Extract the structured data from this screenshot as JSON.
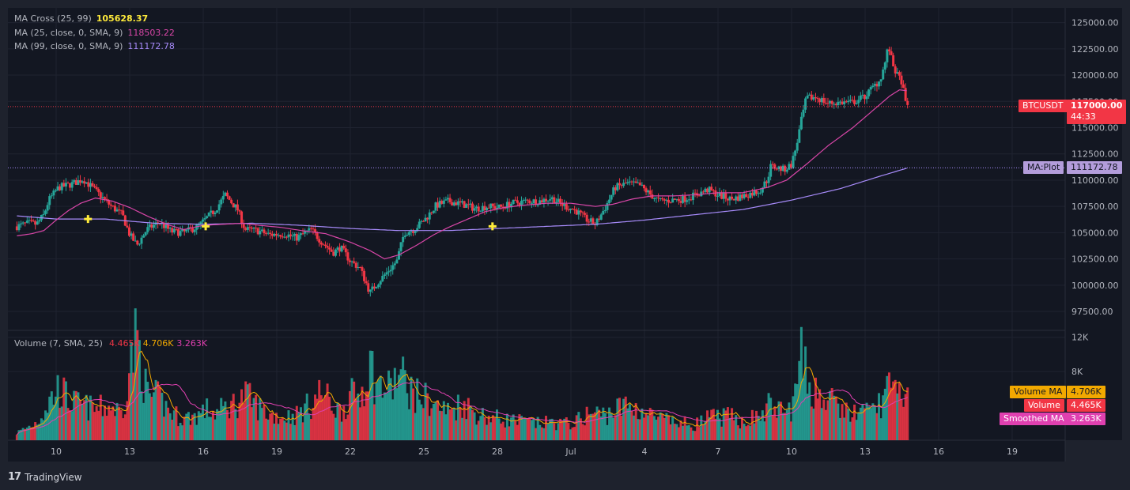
{
  "legend": {
    "ma_cross_label": "MA Cross (25, 99)",
    "ma_cross_value": "105628.37",
    "ma25_label": "MA (25, close, 0, SMA, 9)",
    "ma25_value": "118503.22",
    "ma99_label": "MA (99, close, 0, SMA, 9)",
    "ma99_value": "111172.78",
    "volume_label": "Volume (7, SMA, 25)",
    "volume_v1": "4.465K",
    "volume_v2": "4.706K",
    "volume_v3": "3.263K"
  },
  "tags": {
    "symbol": "BTCUSDT",
    "price": "117000.00",
    "countdown": "44:33",
    "ma_plot_label": "MA:Plot",
    "ma_plot_value": "111172.78",
    "vol_ma_label": "Volume MA",
    "vol_ma_value": "4.706K",
    "volume_label": "Volume",
    "volume_value": "4.465K",
    "smoothed_label": "Smoothed MA",
    "smoothed_value": "3.263K"
  },
  "brand": {
    "name": "TradingView"
  },
  "colors": {
    "background": "#1e222d",
    "plot_bg": "#131722",
    "up": "#26a69a",
    "down": "#f23645",
    "ma25": "#d946a8",
    "ma99": "#a78bfa",
    "cross_marker": "#ffeb3b",
    "vol_ma": "#f2a900",
    "smoothed_ma": "#e040b0"
  },
  "chart_data": {
    "type": "candlestick",
    "symbol": "BTCUSDT",
    "interval": "2h",
    "price_axis": {
      "ticks": [
        "125000.00",
        "122500.00",
        "120000.00",
        "117500.00",
        "115000.00",
        "112500.00",
        "110000.00",
        "107500.00",
        "105000.00",
        "102500.00",
        "100000.00",
        "97500.00"
      ],
      "range": [
        95700,
        126400
      ]
    },
    "volume_axis": {
      "ticks": [
        "12K",
        "8K"
      ],
      "range": [
        0,
        12800
      ]
    },
    "time_axis": {
      "labels": [
        "10",
        "13",
        "16",
        "19",
        "22",
        "25",
        "28",
        "Jul",
        "4",
        "7",
        "10",
        "13",
        "16",
        "19"
      ],
      "range_days": [
        8.35,
        23.5
      ]
    },
    "anchors": [
      {
        "t": 8.4,
        "p": 105600,
        "v": 0.8
      },
      {
        "t": 8.9,
        "p": 105900,
        "v": 1.5
      },
      {
        "t": 9.2,
        "p": 105800,
        "v": 2.0
      },
      {
        "t": 9.5,
        "p": 106700,
        "v": 3.2
      },
      {
        "t": 9.7,
        "p": 108100,
        "v": 4.2
      },
      {
        "t": 10.1,
        "p": 109300,
        "v": 5.8
      },
      {
        "t": 10.6,
        "p": 109600,
        "v": 4.2
      },
      {
        "t": 11.1,
        "p": 110100,
        "v": 3.8
      },
      {
        "t": 11.6,
        "p": 109000,
        "v": 3.4
      },
      {
        "t": 12.2,
        "p": 107600,
        "v": 3.8
      },
      {
        "t": 12.7,
        "p": 106700,
        "v": 3.0
      },
      {
        "t": 13.0,
        "p": 104800,
        "v": 8.0
      },
      {
        "t": 13.3,
        "p": 103800,
        "v": 11.5
      },
      {
        "t": 13.7,
        "p": 105300,
        "v": 5.0
      },
      {
        "t": 14.2,
        "p": 106000,
        "v": 4.6
      },
      {
        "t": 14.7,
        "p": 105100,
        "v": 3.0
      },
      {
        "t": 15.2,
        "p": 105000,
        "v": 2.4
      },
      {
        "t": 15.8,
        "p": 105600,
        "v": 2.8
      },
      {
        "t": 16.1,
        "p": 106300,
        "v": 3.4
      },
      {
        "t": 16.5,
        "p": 107200,
        "v": 3.0
      },
      {
        "t": 16.9,
        "p": 108600,
        "v": 3.6
      },
      {
        "t": 17.4,
        "p": 107200,
        "v": 4.2
      },
      {
        "t": 17.7,
        "p": 105300,
        "v": 5.0
      },
      {
        "t": 18.2,
        "p": 105200,
        "v": 3.8
      },
      {
        "t": 18.7,
        "p": 104800,
        "v": 2.8
      },
      {
        "t": 19.3,
        "p": 104900,
        "v": 2.6
      },
      {
        "t": 19.8,
        "p": 104500,
        "v": 2.8
      },
      {
        "t": 20.4,
        "p": 105300,
        "v": 4.0
      },
      {
        "t": 20.8,
        "p": 104200,
        "v": 5.4
      },
      {
        "t": 21.3,
        "p": 103100,
        "v": 3.8
      },
      {
        "t": 21.6,
        "p": 103600,
        "v": 3.2
      },
      {
        "t": 22.0,
        "p": 102300,
        "v": 4.8
      },
      {
        "t": 22.4,
        "p": 101600,
        "v": 5.0
      },
      {
        "t": 22.8,
        "p": 99300,
        "v": 8.5
      },
      {
        "t": 23.1,
        "p": 100200,
        "v": 6.0
      },
      {
        "t": 23.6,
        "p": 101500,
        "v": 5.6
      },
      {
        "t": 23.9,
        "p": 102300,
        "v": 7.0
      },
      {
        "t": 24.2,
        "p": 105000,
        "v": 6.8
      },
      {
        "t": 24.6,
        "p": 105300,
        "v": 5.0
      },
      {
        "t": 25.1,
        "p": 106400,
        "v": 4.6
      },
      {
        "t": 25.5,
        "p": 107600,
        "v": 3.8
      },
      {
        "t": 26.0,
        "p": 108000,
        "v": 3.2
      },
      {
        "t": 26.6,
        "p": 107700,
        "v": 4.2
      },
      {
        "t": 27.1,
        "p": 107300,
        "v": 3.0
      },
      {
        "t": 27.6,
        "p": 107500,
        "v": 2.6
      },
      {
        "t": 28.1,
        "p": 107400,
        "v": 2.4
      },
      {
        "t": 28.6,
        "p": 107800,
        "v": 2.2
      },
      {
        "t": 29.2,
        "p": 108000,
        "v": 2.0
      },
      {
        "t": 29.7,
        "p": 108000,
        "v": 1.8
      },
      {
        "t": 30.2,
        "p": 108300,
        "v": 2.0
      },
      {
        "t": 30.7,
        "p": 107600,
        "v": 1.8
      },
      {
        "t": 31.2,
        "p": 107100,
        "v": 2.0
      },
      {
        "t": 31.6,
        "p": 106300,
        "v": 2.8
      },
      {
        "t": 32.0,
        "p": 105800,
        "v": 3.0
      },
      {
        "t": 32.4,
        "p": 107400,
        "v": 2.8
      },
      {
        "t": 32.8,
        "p": 109300,
        "v": 3.4
      },
      {
        "t": 33.3,
        "p": 109700,
        "v": 3.8
      },
      {
        "t": 33.8,
        "p": 109500,
        "v": 3.4
      },
      {
        "t": 34.2,
        "p": 108700,
        "v": 2.8
      },
      {
        "t": 34.6,
        "p": 108000,
        "v": 2.4
      },
      {
        "t": 35.1,
        "p": 108100,
        "v": 2.0
      },
      {
        "t": 35.6,
        "p": 108200,
        "v": 1.8
      },
      {
        "t": 36.1,
        "p": 108600,
        "v": 1.8
      },
      {
        "t": 36.6,
        "p": 109100,
        "v": 2.4
      },
      {
        "t": 37.0,
        "p": 108600,
        "v": 2.6
      },
      {
        "t": 37.5,
        "p": 108200,
        "v": 2.6
      },
      {
        "t": 37.9,
        "p": 108400,
        "v": 2.2
      },
      {
        "t": 38.3,
        "p": 108700,
        "v": 2.4
      },
      {
        "t": 38.7,
        "p": 109000,
        "v": 2.6
      },
      {
        "t": 39.0,
        "p": 110000,
        "v": 3.4
      },
      {
        "t": 39.15,
        "p": 111300,
        "v": 4.2
      },
      {
        "t": 39.4,
        "p": 111200,
        "v": 3.4
      },
      {
        "t": 39.7,
        "p": 111000,
        "v": 3.0
      },
      {
        "t": 40.0,
        "p": 111500,
        "v": 3.6
      },
      {
        "t": 40.2,
        "p": 113300,
        "v": 5.4
      },
      {
        "t": 40.4,
        "p": 115700,
        "v": 9.0
      },
      {
        "t": 40.6,
        "p": 117800,
        "v": 7.0
      },
      {
        "t": 41.0,
        "p": 117900,
        "v": 5.4
      },
      {
        "t": 41.5,
        "p": 117300,
        "v": 4.4
      },
      {
        "t": 42.0,
        "p": 117400,
        "v": 3.4
      },
      {
        "t": 42.5,
        "p": 117400,
        "v": 3.0
      },
      {
        "t": 43.0,
        "p": 118000,
        "v": 3.0
      },
      {
        "t": 43.3,
        "p": 118800,
        "v": 3.6
      },
      {
        "t": 43.6,
        "p": 119500,
        "v": 4.0
      },
      {
        "t": 43.8,
        "p": 121000,
        "v": 5.0
      },
      {
        "t": 43.95,
        "p": 122800,
        "v": 6.5
      },
      {
        "t": 44.1,
        "p": 121200,
        "v": 5.0
      },
      {
        "t": 44.3,
        "p": 120000,
        "v": 4.6
      },
      {
        "t": 44.5,
        "p": 119400,
        "v": 4.8
      },
      {
        "t": 44.65,
        "p": 117300,
        "v": 6.0
      },
      {
        "t": 44.75,
        "p": 117000,
        "v": 4.5
      }
    ],
    "ma25_anchors": [
      {
        "t": 8.4,
        "p": 104700
      },
      {
        "t": 9.0,
        "p": 104900
      },
      {
        "t": 9.5,
        "p": 105200
      },
      {
        "t": 10.0,
        "p": 106200
      },
      {
        "t": 10.5,
        "p": 107100
      },
      {
        "t": 11.0,
        "p": 107800
      },
      {
        "t": 11.6,
        "p": 108300
      },
      {
        "t": 12.3,
        "p": 108000
      },
      {
        "t": 13.0,
        "p": 107400
      },
      {
        "t": 13.7,
        "p": 106600
      },
      {
        "t": 14.5,
        "p": 105800
      },
      {
        "t": 15.2,
        "p": 105300
      },
      {
        "t": 16.0,
        "p": 105700
      },
      {
        "t": 16.8,
        "p": 105800
      },
      {
        "t": 17.6,
        "p": 105900
      },
      {
        "t": 18.3,
        "p": 105700
      },
      {
        "t": 19.2,
        "p": 105500
      },
      {
        "t": 20.0,
        "p": 105200
      },
      {
        "t": 21.0,
        "p": 104900
      },
      {
        "t": 22.0,
        "p": 104100
      },
      {
        "t": 22.8,
        "p": 103300
      },
      {
        "t": 23.4,
        "p": 102500
      },
      {
        "t": 24.0,
        "p": 102900
      },
      {
        "t": 24.7,
        "p": 103800
      },
      {
        "t": 25.4,
        "p": 104800
      },
      {
        "t": 26.0,
        "p": 105500
      },
      {
        "t": 26.8,
        "p": 106300
      },
      {
        "t": 27.5,
        "p": 107000
      },
      {
        "t": 28.3,
        "p": 107400
      },
      {
        "t": 29.0,
        "p": 107600
      },
      {
        "t": 30.0,
        "p": 107800
      },
      {
        "t": 31.0,
        "p": 107800
      },
      {
        "t": 32.0,
        "p": 107500
      },
      {
        "t": 32.7,
        "p": 107700
      },
      {
        "t": 33.5,
        "p": 108200
      },
      {
        "t": 34.3,
        "p": 108500
      },
      {
        "t": 35.2,
        "p": 108500
      },
      {
        "t": 36.0,
        "p": 108600
      },
      {
        "t": 37.0,
        "p": 108800
      },
      {
        "t": 38.0,
        "p": 108800
      },
      {
        "t": 39.0,
        "p": 109300
      },
      {
        "t": 39.8,
        "p": 110000
      },
      {
        "t": 40.6,
        "p": 111500
      },
      {
        "t": 41.5,
        "p": 113300
      },
      {
        "t": 42.5,
        "p": 115000
      },
      {
        "t": 43.3,
        "p": 116600
      },
      {
        "t": 44.0,
        "p": 118000
      },
      {
        "t": 44.4,
        "p": 118600
      },
      {
        "t": 44.75,
        "p": 118500
      }
    ],
    "ma99_anchors": [
      {
        "t": 8.4,
        "p": 106600
      },
      {
        "t": 10.0,
        "p": 106300
      },
      {
        "t": 12.0,
        "p": 106300
      },
      {
        "t": 14.0,
        "p": 105900
      },
      {
        "t": 16.0,
        "p": 105800
      },
      {
        "t": 18.0,
        "p": 105900
      },
      {
        "t": 20.0,
        "p": 105700
      },
      {
        "t": 22.0,
        "p": 105400
      },
      {
        "t": 24.0,
        "p": 105200
      },
      {
        "t": 26.0,
        "p": 105200
      },
      {
        "t": 28.0,
        "p": 105400
      },
      {
        "t": 30.0,
        "p": 105600
      },
      {
        "t": 32.0,
        "p": 105800
      },
      {
        "t": 34.0,
        "p": 106200
      },
      {
        "t": 36.0,
        "p": 106700
      },
      {
        "t": 38.0,
        "p": 107200
      },
      {
        "t": 40.0,
        "p": 108100
      },
      {
        "t": 42.0,
        "p": 109200
      },
      {
        "t": 43.5,
        "p": 110300
      },
      {
        "t": 44.75,
        "p": 111172.78
      }
    ],
    "cross_markers": [
      {
        "t": 11.3,
        "p": 106300
      },
      {
        "t": 16.1,
        "p": 105600
      },
      {
        "t": 27.8,
        "p": 105600
      }
    ],
    "last_price": 117000.0,
    "ma_plot_value": 111172.78
  }
}
